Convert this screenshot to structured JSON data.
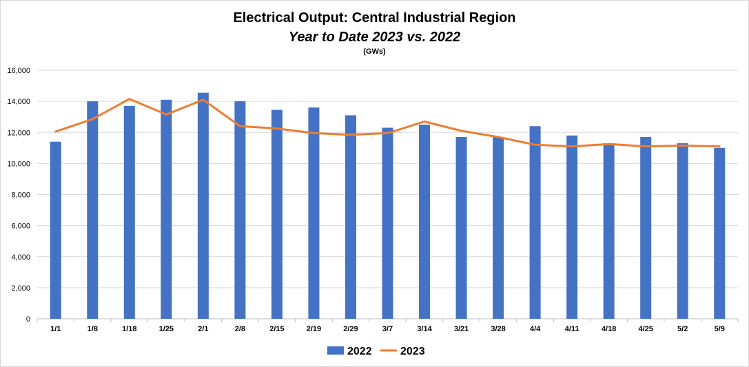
{
  "chart_data": {
    "type": "bar",
    "title": "Electrical Output:  Central Industrial Region",
    "subtitle": "Year to Date 2023 vs. 2022",
    "units": "(GWs)",
    "categories": [
      "1/1",
      "1/8",
      "1/18",
      "1/25",
      "2/1",
      "2/8",
      "2/15",
      "2/19",
      "2/29",
      "3/7",
      "3/14",
      "3/21",
      "3/28",
      "4/4",
      "4/11",
      "4/18",
      "4/25",
      "5/2",
      "5/9"
    ],
    "ylim": [
      0,
      16000
    ],
    "yticks": [
      0,
      2000,
      4000,
      6000,
      8000,
      10000,
      12000,
      14000,
      16000
    ],
    "ytick_labels": [
      "0",
      "2,000",
      "4,000",
      "6,000",
      "8,000",
      "10,000",
      "12,000",
      "14,000",
      "16,000"
    ],
    "grid": true,
    "legend_position": "bottom",
    "series": [
      {
        "name": "2022",
        "kind": "bar",
        "color": "#4472c4",
        "values": [
          11400,
          14000,
          13700,
          14100,
          14550,
          14000,
          13450,
          13600,
          13100,
          12300,
          12500,
          11700,
          11700,
          12400,
          11800,
          11300,
          11700,
          11300,
          11000
        ]
      },
      {
        "name": "2023",
        "kind": "line",
        "color": "#ed7d31",
        "values": [
          12050,
          12850,
          14150,
          13150,
          14100,
          12400,
          12250,
          11950,
          11850,
          11950,
          12700,
          12100,
          11700,
          11200,
          11100,
          11250,
          11100,
          11150,
          11100
        ]
      }
    ]
  }
}
